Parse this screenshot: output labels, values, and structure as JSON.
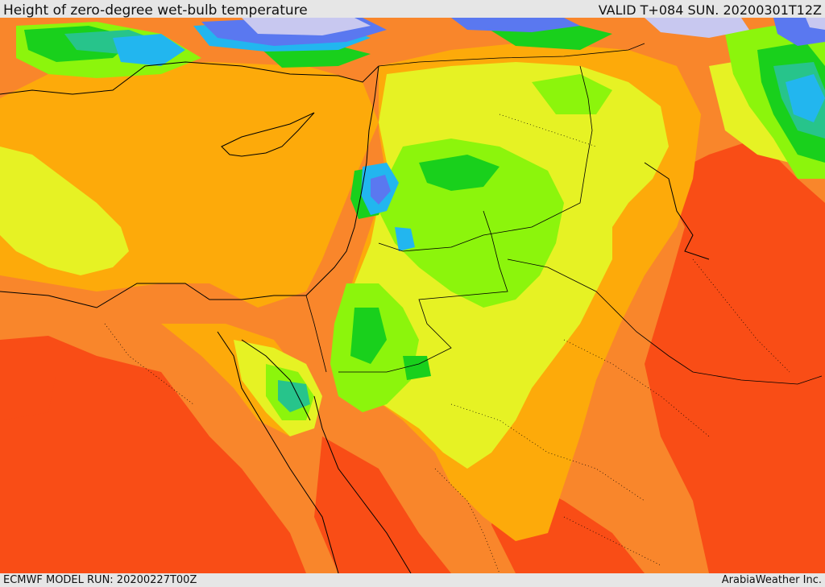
{
  "header": {
    "title": "Height of zero-degree wet-bulb temperature",
    "valid": "VALID T+084 SUN. 20200301T12Z"
  },
  "footer": {
    "model_run": "ECMWF MODEL RUN: 20200227T00Z",
    "credit": "ArabiaWeather Inc."
  },
  "map": {
    "palette": {
      "very_high": "#f94d16",
      "high": "#f9862b",
      "mid_high": "#fdaa0a",
      "mid": "#e6f224",
      "mid_low": "#8cf50c",
      "low": "#19d01c",
      "lower": "#27c48b",
      "lowest": "#22b6ef",
      "snow_blue": "#5a78f0",
      "snow_pale": "#c8c8f0",
      "coast_line": "#000000"
    }
  }
}
